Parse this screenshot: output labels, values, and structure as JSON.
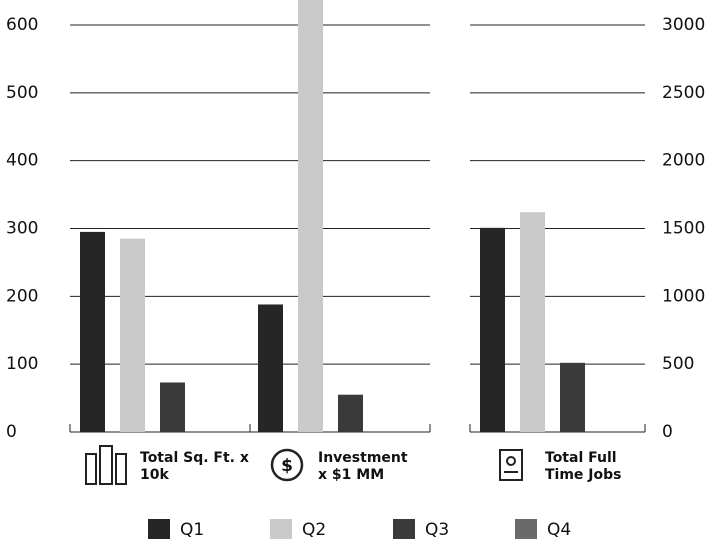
{
  "chart_data": {
    "type": "bar",
    "categories": [
      "Total Sq. Ft. x 10k",
      "Investment x $1 MM",
      "Total Full Time Jobs"
    ],
    "category_axis": [
      "y",
      "y",
      "y2"
    ],
    "series": [
      {
        "name": "Q1",
        "color": "#262626",
        "values": [
          295,
          188,
          1505
        ]
      },
      {
        "name": "Q2",
        "color": "#c9c9c9",
        "values": [
          285,
          640,
          1620
        ]
      },
      {
        "name": "Q3",
        "color": "#3a3a3a",
        "values": [
          73,
          55,
          510
        ]
      },
      {
        "name": "Q4",
        "color": "#6a6a6a",
        "values": [
          null,
          null,
          null
        ]
      }
    ],
    "ylim": [
      0,
      600
    ],
    "yticks": [
      0,
      100,
      200,
      300,
      400,
      500,
      600
    ],
    "y2lim": [
      0,
      3000
    ],
    "y2ticks": [
      0,
      500,
      1000,
      1500,
      2000,
      2500,
      3000
    ],
    "grid": true,
    "legend": "bottom"
  }
}
